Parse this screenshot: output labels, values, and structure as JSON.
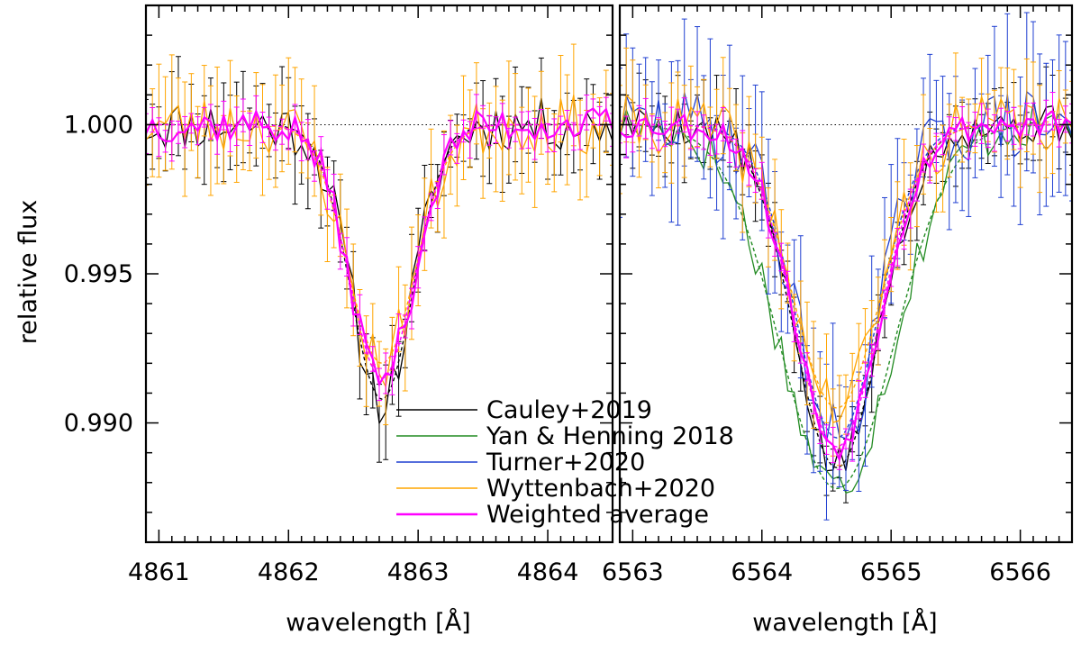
{
  "chart_data": [
    {
      "type": "line",
      "panel": "left",
      "title": "",
      "xlabel": "wavelength [Å]",
      "ylabel": "relative flux",
      "xlim": [
        4860.9,
        4864.5
      ],
      "ylim": [
        0.986,
        1.004
      ],
      "xticks": [
        4861,
        4862,
        4863,
        4864
      ],
      "xtick_labels": [
        "4861",
        "4862",
        "4863",
        "4864"
      ],
      "yticks": [
        0.99,
        0.995,
        1.0
      ],
      "ytick_labels": [
        "0.990",
        "0.995",
        "1.000"
      ],
      "reference_line": 1.0,
      "line_center": 4862.72,
      "series": [
        {
          "name": "Cauley+2019",
          "color": "#000000",
          "depth": 0.0092,
          "sigma": 0.24,
          "noise": 0.0009,
          "err": 0.0012,
          "seed": 11
        },
        {
          "name": "Wyttenbach+2020",
          "color": "#ffa500",
          "depth": 0.008,
          "sigma": 0.26,
          "noise": 0.001,
          "err": 0.0014,
          "seed": 23
        },
        {
          "name": "Weighted average",
          "color": "#ff00ff",
          "depth": 0.0085,
          "sigma": 0.25,
          "noise": 0.0006,
          "err": 0.0005,
          "seed": 37
        }
      ]
    },
    {
      "type": "line",
      "panel": "right",
      "title": "",
      "xlabel": "wavelength [Å]",
      "ylabel": "",
      "xlim": [
        6562.9,
        6566.4
      ],
      "ylim": [
        0.986,
        1.004
      ],
      "xticks": [
        6563,
        6564,
        6565,
        6566
      ],
      "xtick_labels": [
        "6563",
        "6564",
        "6565",
        "6566"
      ],
      "yticks": [
        0.99,
        0.995,
        1.0
      ],
      "reference_line": 1.0,
      "line_center": 6564.58,
      "series": [
        {
          "name": "Cauley+2019",
          "color": "#000000",
          "depth": 0.0115,
          "sigma": 0.33,
          "noise": 0.0007,
          "err": 0.001,
          "seed": 5
        },
        {
          "name": "Yan & Henning 2018",
          "color": "#228b22",
          "depth": 0.0122,
          "sigma": 0.44,
          "noise": 0.0008,
          "err": 0,
          "seed": 17
        },
        {
          "name": "Turner+2020",
          "color": "#1f3fd1",
          "depth": 0.0105,
          "sigma": 0.32,
          "noise": 0.0012,
          "err": 0.002,
          "seed": 29
        },
        {
          "name": "Wyttenbach+2020",
          "color": "#ffa500",
          "depth": 0.0095,
          "sigma": 0.34,
          "noise": 0.001,
          "err": 0.0013,
          "seed": 41
        },
        {
          "name": "Weighted average",
          "color": "#ff00ff",
          "depth": 0.0108,
          "sigma": 0.33,
          "noise": 0.0005,
          "err": 0.0005,
          "seed": 53
        }
      ]
    }
  ],
  "legend": {
    "placement": "bottom-center",
    "entries": [
      {
        "label": "Cauley+2019",
        "color": "#000000"
      },
      {
        "label": "Yan & Henning 2018",
        "color": "#228b22"
      },
      {
        "label": "Turner+2020",
        "color": "#1f3fd1"
      },
      {
        "label": "Wyttenbach+2020",
        "color": "#ffa500"
      },
      {
        "label": "Weighted average",
        "color": "#ff00ff"
      }
    ]
  }
}
